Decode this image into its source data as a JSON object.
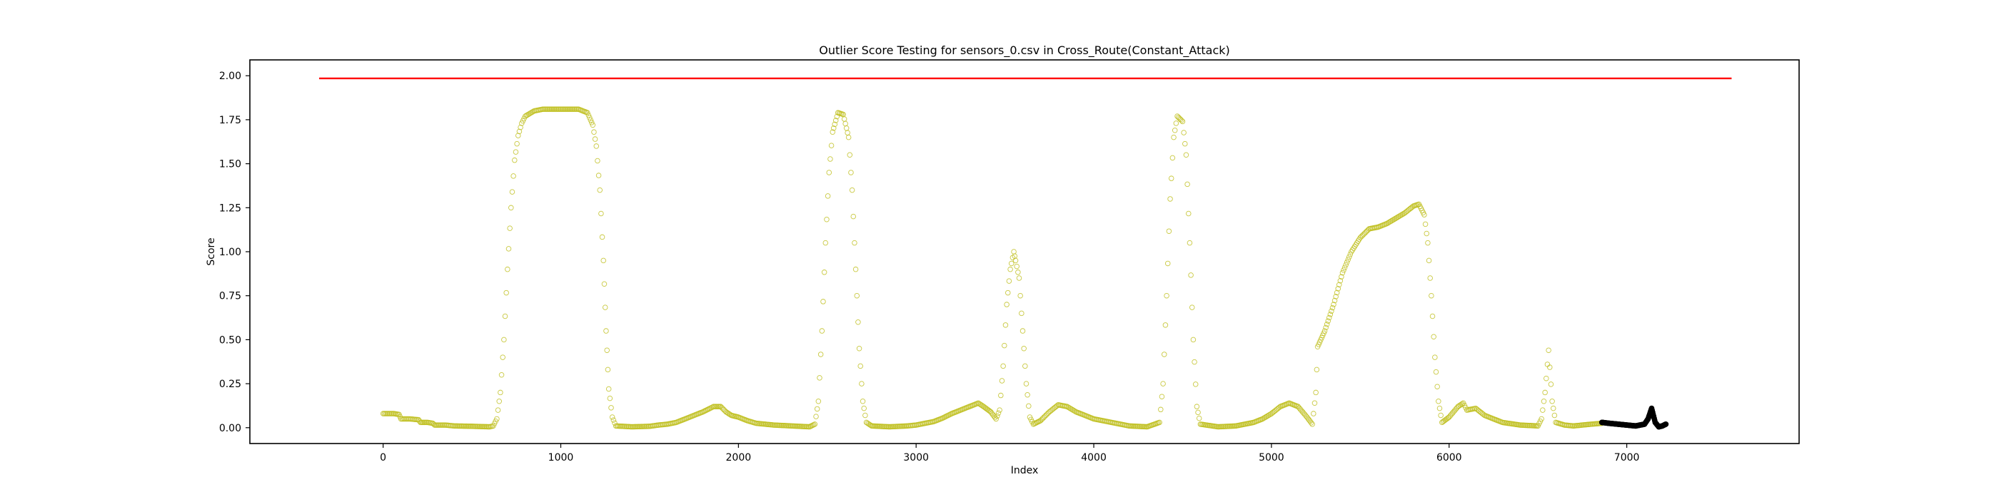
{
  "chart_data": {
    "type": "scatter",
    "title": "Outlier Score Testing for sensors_0.csv in Cross_Route(Constant_Attack)",
    "xlabel": "Index",
    "ylabel": "Score",
    "xlim": [
      -750,
      7970
    ],
    "ylim": [
      -0.09,
      2.09
    ],
    "x_ticks": [
      0,
      1000,
      2000,
      3000,
      4000,
      5000,
      6000,
      7000
    ],
    "y_ticks": [
      0.0,
      0.25,
      0.5,
      0.75,
      1.0,
      1.25,
      1.5,
      1.75,
      2.0
    ],
    "x_tick_labels": [
      "0",
      "1000",
      "2000",
      "3000",
      "4000",
      "5000",
      "6000",
      "7000"
    ],
    "y_tick_labels": [
      "0.00",
      "0.25",
      "0.50",
      "0.75",
      "1.00",
      "1.25",
      "1.50",
      "1.75",
      "2.00"
    ],
    "grid": false,
    "colors": {
      "normal": "#bfbf20",
      "attack": "#000000",
      "threshold": "#ff0000"
    },
    "threshold": {
      "value": 1.985,
      "x_range": [
        -360,
        7590
      ]
    },
    "series": [
      {
        "marker": "open-circle",
        "points": [
          [
            0,
            0.08
          ],
          [
            30,
            0.08
          ],
          [
            60,
            0.08
          ],
          [
            90,
            0.075
          ],
          [
            100,
            0.05
          ],
          [
            150,
            0.05
          ],
          [
            200,
            0.045
          ],
          [
            210,
            0.03
          ],
          [
            250,
            0.03
          ],
          [
            280,
            0.025
          ],
          [
            290,
            0.015
          ],
          [
            350,
            0.015
          ],
          [
            400,
            0.01
          ],
          [
            500,
            0.008
          ],
          [
            600,
            0.005
          ],
          [
            620,
            0.01
          ],
          [
            640,
            0.05
          ],
          [
            660,
            0.2
          ],
          [
            680,
            0.5
          ],
          [
            700,
            0.9
          ],
          [
            720,
            1.25
          ],
          [
            740,
            1.52
          ],
          [
            760,
            1.66
          ],
          [
            780,
            1.73
          ],
          [
            800,
            1.77
          ],
          [
            850,
            1.8
          ],
          [
            900,
            1.81
          ],
          [
            1000,
            1.81
          ],
          [
            1100,
            1.81
          ],
          [
            1150,
            1.79
          ],
          [
            1180,
            1.72
          ],
          [
            1200,
            1.6
          ],
          [
            1220,
            1.35
          ],
          [
            1240,
            0.95
          ],
          [
            1255,
            0.55
          ],
          [
            1270,
            0.22
          ],
          [
            1290,
            0.06
          ],
          [
            1310,
            0.01
          ],
          [
            1400,
            0.005
          ],
          [
            1500,
            0.008
          ],
          [
            1550,
            0.015
          ],
          [
            1600,
            0.02
          ],
          [
            1650,
            0.03
          ],
          [
            1700,
            0.05
          ],
          [
            1750,
            0.07
          ],
          [
            1800,
            0.09
          ],
          [
            1840,
            0.11
          ],
          [
            1860,
            0.12
          ],
          [
            1900,
            0.12
          ],
          [
            1930,
            0.09
          ],
          [
            1960,
            0.07
          ],
          [
            2000,
            0.06
          ],
          [
            2050,
            0.04
          ],
          [
            2100,
            0.025
          ],
          [
            2200,
            0.015
          ],
          [
            2300,
            0.01
          ],
          [
            2400,
            0.005
          ],
          [
            2430,
            0.02
          ],
          [
            2450,
            0.15
          ],
          [
            2470,
            0.55
          ],
          [
            2490,
            1.05
          ],
          [
            2510,
            1.45
          ],
          [
            2530,
            1.68
          ],
          [
            2560,
            1.79
          ],
          [
            2590,
            1.78
          ],
          [
            2620,
            1.65
          ],
          [
            2640,
            1.35
          ],
          [
            2660,
            0.9
          ],
          [
            2680,
            0.45
          ],
          [
            2700,
            0.15
          ],
          [
            2720,
            0.03
          ],
          [
            2750,
            0.01
          ],
          [
            2850,
            0.005
          ],
          [
            2950,
            0.01
          ],
          [
            3000,
            0.015
          ],
          [
            3050,
            0.025
          ],
          [
            3100,
            0.035
          ],
          [
            3150,
            0.055
          ],
          [
            3200,
            0.08
          ],
          [
            3250,
            0.1
          ],
          [
            3300,
            0.12
          ],
          [
            3350,
            0.14
          ],
          [
            3380,
            0.12
          ],
          [
            3420,
            0.09
          ],
          [
            3450,
            0.05
          ],
          [
            3470,
            0.1
          ],
          [
            3490,
            0.35
          ],
          [
            3510,
            0.7
          ],
          [
            3530,
            0.9
          ],
          [
            3550,
            1.0
          ],
          [
            3560,
            0.95
          ],
          [
            3580,
            0.85
          ],
          [
            3600,
            0.55
          ],
          [
            3620,
            0.25
          ],
          [
            3640,
            0.06
          ],
          [
            3660,
            0.02
          ],
          [
            3700,
            0.04
          ],
          [
            3750,
            0.09
          ],
          [
            3800,
            0.13
          ],
          [
            3850,
            0.12
          ],
          [
            3900,
            0.09
          ],
          [
            3950,
            0.07
          ],
          [
            4000,
            0.05
          ],
          [
            4050,
            0.04
          ],
          [
            4100,
            0.03
          ],
          [
            4150,
            0.02
          ],
          [
            4200,
            0.01
          ],
          [
            4300,
            0.005
          ],
          [
            4370,
            0.03
          ],
          [
            4390,
            0.25
          ],
          [
            4410,
            0.75
          ],
          [
            4430,
            1.3
          ],
          [
            4450,
            1.65
          ],
          [
            4470,
            1.77
          ],
          [
            4500,
            1.74
          ],
          [
            4520,
            1.55
          ],
          [
            4540,
            1.05
          ],
          [
            4560,
            0.5
          ],
          [
            4580,
            0.12
          ],
          [
            4600,
            0.02
          ],
          [
            4700,
            0.005
          ],
          [
            4800,
            0.01
          ],
          [
            4900,
            0.03
          ],
          [
            4950,
            0.05
          ],
          [
            5000,
            0.08
          ],
          [
            5050,
            0.12
          ],
          [
            5100,
            0.14
          ],
          [
            5150,
            0.12
          ],
          [
            5200,
            0.06
          ],
          [
            5230,
            0.02
          ],
          [
            5250,
            0.2
          ],
          [
            5260,
            0.46
          ],
          [
            5300,
            0.55
          ],
          [
            5350,
            0.7
          ],
          [
            5400,
            0.88
          ],
          [
            5450,
            1.0
          ],
          [
            5500,
            1.08
          ],
          [
            5550,
            1.13
          ],
          [
            5600,
            1.14
          ],
          [
            5650,
            1.16
          ],
          [
            5700,
            1.19
          ],
          [
            5750,
            1.22
          ],
          [
            5800,
            1.26
          ],
          [
            5830,
            1.27
          ],
          [
            5860,
            1.21
          ],
          [
            5880,
            1.05
          ],
          [
            5900,
            0.75
          ],
          [
            5920,
            0.4
          ],
          [
            5940,
            0.15
          ],
          [
            5960,
            0.03
          ],
          [
            6000,
            0.06
          ],
          [
            6050,
            0.12
          ],
          [
            6080,
            0.14
          ],
          [
            6100,
            0.1
          ],
          [
            6150,
            0.11
          ],
          [
            6200,
            0.07
          ],
          [
            6250,
            0.05
          ],
          [
            6300,
            0.03
          ],
          [
            6400,
            0.015
          ],
          [
            6500,
            0.01
          ],
          [
            6520,
            0.05
          ],
          [
            6540,
            0.2
          ],
          [
            6560,
            0.44
          ],
          [
            6580,
            0.15
          ],
          [
            6600,
            0.03
          ],
          [
            6650,
            0.015
          ],
          [
            6700,
            0.01
          ],
          [
            6800,
            0.02
          ],
          [
            6860,
            0.025
          ]
        ]
      },
      {
        "marker": "filled-circle",
        "points": [
          [
            6860,
            0.03
          ],
          [
            6900,
            0.025
          ],
          [
            6950,
            0.02
          ],
          [
            7000,
            0.015
          ],
          [
            7050,
            0.01
          ],
          [
            7100,
            0.02
          ],
          [
            7120,
            0.05
          ],
          [
            7140,
            0.11
          ],
          [
            7160,
            0.03
          ],
          [
            7180,
            0.005
          ],
          [
            7200,
            0.01
          ],
          [
            7220,
            0.02
          ]
        ]
      }
    ]
  }
}
